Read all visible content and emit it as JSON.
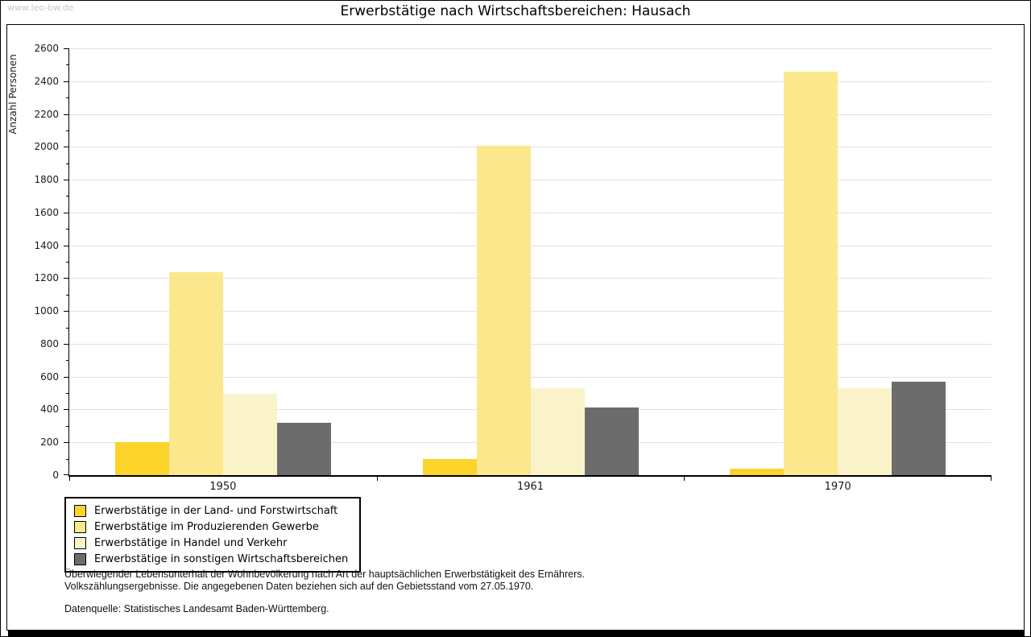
{
  "watermark": "www.leo-bw.de",
  "title": "Erwerbstätige nach Wirtschaftsbereichen: Hausach",
  "chart_data": {
    "type": "bar",
    "title": "Erwerbstätige nach Wirtschaftsbereichen: Hausach",
    "ylabel": "Anzahl Personen",
    "xlabel": "",
    "ylim": [
      0,
      2600
    ],
    "ytick_step": 200,
    "minor_tick_step": 100,
    "grid": true,
    "legend_position": "bottom-left",
    "categories": [
      "1950",
      "1961",
      "1970"
    ],
    "series": [
      {
        "name": "Erwerbstätige in der Land- und Forstwirtschaft",
        "color": "#FCD32B",
        "values": [
          200,
          100,
          40
        ]
      },
      {
        "name": "Erwerbstätige im Produzierenden Gewerbe",
        "color": "#FBE88D",
        "values": [
          1235,
          2005,
          2460
        ]
      },
      {
        "name": "Erwerbstätige in Handel und Verkehr",
        "color": "#FAF3C9",
        "values": [
          495,
          530,
          530
        ]
      },
      {
        "name": "Erwerbstätige in sonstigen Wirtschaftsbereichen",
        "color": "#6C6C6C",
        "values": [
          320,
          410,
          570
        ]
      }
    ]
  },
  "footnotes": {
    "line1": "Überwiegender Lebensunterhalt der Wohnbevölkerung nach Art der hauptsächlichen Erwerbstätigkeit des Ernährers.",
    "line2": "Volkszählungsergebnisse. Die angegebenen Daten beziehen sich auf den Gebietsstand vom 27.05.1970.",
    "source": "Datenquelle: Statistisches Landesamt Baden-Württemberg."
  }
}
